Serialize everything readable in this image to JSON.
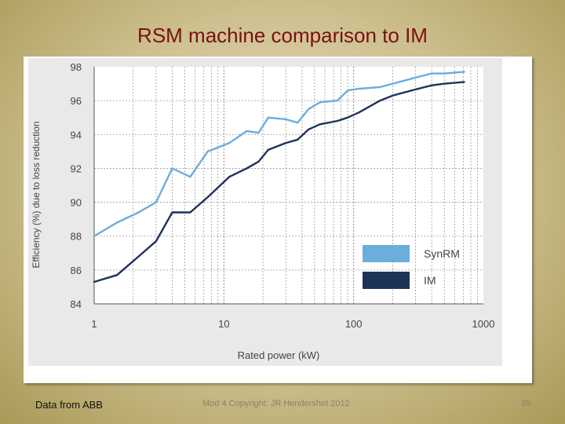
{
  "slide": {
    "title": "RSM machine comparison to IM",
    "footer_left": "Data from ABB",
    "footer_center": "Mod 4 Copyright: JR Hendershot 2012",
    "page_number": "39"
  },
  "chart_data": {
    "type": "line",
    "title": "",
    "xlabel": "Rated power (kW)",
    "ylabel": "Efficiency (%) due to loss reduction",
    "xscale": "log",
    "xlim": [
      1,
      1000
    ],
    "ylim": [
      84,
      98
    ],
    "x_ticks": [
      "1",
      "10",
      "100",
      "1000"
    ],
    "y_ticks": [
      "84",
      "86",
      "88",
      "90",
      "92",
      "94",
      "96",
      "98"
    ],
    "grid": true,
    "legend_position": "bottom-right",
    "series": [
      {
        "name": "SynRM",
        "color": "#6aaedb",
        "x": [
          1,
          1.5,
          2.2,
          3,
          4,
          5.5,
          7.5,
          11,
          15,
          18.5,
          22,
          30,
          37,
          45,
          55,
          75,
          90,
          110,
          160,
          200,
          250,
          315,
          400,
          500,
          710
        ],
        "y": [
          88.0,
          88.8,
          89.4,
          90.0,
          92.0,
          91.5,
          93.0,
          93.5,
          94.2,
          94.1,
          95.0,
          94.9,
          94.7,
          95.5,
          95.9,
          96.0,
          96.6,
          96.7,
          96.8,
          97.0,
          97.2,
          97.4,
          97.6,
          97.6,
          97.7
        ]
      },
      {
        "name": "IM",
        "color": "#1e3358",
        "x": [
          1,
          1.5,
          2.2,
          3,
          4,
          5.5,
          7.5,
          11,
          15,
          18.5,
          22,
          30,
          37,
          45,
          55,
          75,
          90,
          110,
          160,
          200,
          250,
          315,
          400,
          500,
          710
        ],
        "y": [
          85.3,
          85.7,
          86.8,
          87.7,
          89.4,
          89.4,
          90.3,
          91.5,
          92.0,
          92.4,
          93.1,
          93.5,
          93.7,
          94.3,
          94.6,
          94.8,
          95.0,
          95.3,
          96.0,
          96.3,
          96.5,
          96.7,
          96.9,
          97.0,
          97.1
        ]
      }
    ]
  }
}
